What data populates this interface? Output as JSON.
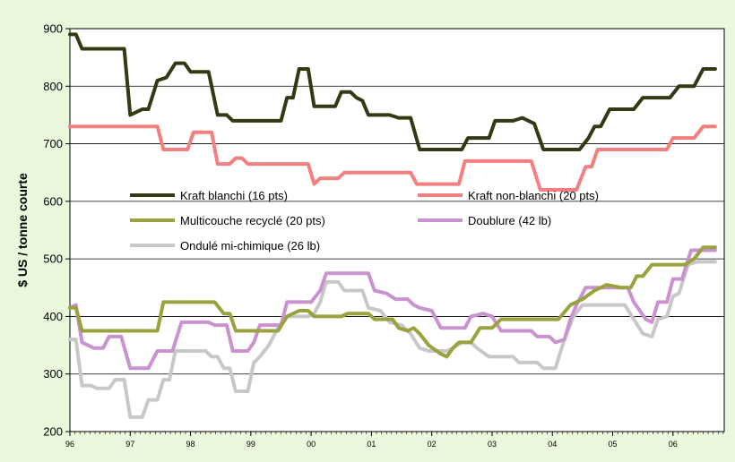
{
  "chart_data": {
    "type": "line",
    "title": "",
    "xlabel": "",
    "ylabel": "$ US / tonne courte",
    "ylim": [
      200,
      900
    ],
    "yticks": [
      200,
      300,
      400,
      500,
      600,
      700,
      800,
      900
    ],
    "xlim": [
      1996.0,
      2006.85
    ],
    "xtick_labels": [
      "96",
      "97",
      "98",
      "99",
      "00",
      "01",
      "02",
      "03",
      "04",
      "05",
      "06"
    ],
    "grid": "horizontal",
    "legend_position": "center",
    "colors": {
      "background": "#eaf8dc",
      "plot_background": "#ffffff",
      "kraft_blanchi": "#333a13",
      "kraft_non_blanchi": "#f47f7f",
      "multicouche": "#9aa23e",
      "doublure": "#c893cf",
      "ondule": "#c8c8c8"
    },
    "series": [
      {
        "name": "Kraft blanchi (16 pts)",
        "color_key": "kraft_blanchi",
        "points": [
          [
            1996.0,
            890
          ],
          [
            1996.1,
            890
          ],
          [
            1996.2,
            865
          ],
          [
            1996.9,
            865
          ],
          [
            1997.0,
            750
          ],
          [
            1997.2,
            760
          ],
          [
            1997.3,
            760
          ],
          [
            1997.45,
            810
          ],
          [
            1997.6,
            815
          ],
          [
            1997.75,
            840
          ],
          [
            1997.9,
            840
          ],
          [
            1998.0,
            825
          ],
          [
            1998.3,
            825
          ],
          [
            1998.45,
            750
          ],
          [
            1998.6,
            750
          ],
          [
            1998.7,
            740
          ],
          [
            1999.5,
            740
          ],
          [
            1999.6,
            780
          ],
          [
            1999.7,
            780
          ],
          [
            1999.8,
            830
          ],
          [
            1999.95,
            830
          ],
          [
            2000.05,
            765
          ],
          [
            2000.4,
            765
          ],
          [
            2000.5,
            790
          ],
          [
            2000.65,
            790
          ],
          [
            2000.75,
            780
          ],
          [
            2000.85,
            775
          ],
          [
            2000.95,
            750
          ],
          [
            2001.3,
            750
          ],
          [
            2001.45,
            745
          ],
          [
            2001.65,
            745
          ],
          [
            2001.8,
            690
          ],
          [
            2002.5,
            690
          ],
          [
            2002.6,
            710
          ],
          [
            2002.95,
            710
          ],
          [
            2003.05,
            740
          ],
          [
            2003.35,
            740
          ],
          [
            2003.5,
            745
          ],
          [
            2003.7,
            735
          ],
          [
            2003.85,
            690
          ],
          [
            2004.45,
            690
          ],
          [
            2004.6,
            710
          ],
          [
            2004.7,
            730
          ],
          [
            2004.8,
            730
          ],
          [
            2004.95,
            760
          ],
          [
            2005.35,
            760
          ],
          [
            2005.5,
            780
          ],
          [
            2005.95,
            780
          ],
          [
            2006.1,
            800
          ],
          [
            2006.35,
            800
          ],
          [
            2006.5,
            830
          ],
          [
            2006.7,
            830
          ]
        ]
      },
      {
        "name": "Kraft non-blanchi (20 pts)",
        "color_key": "kraft_non_blanchi",
        "points": [
          [
            1996.0,
            730
          ],
          [
            1997.45,
            730
          ],
          [
            1997.55,
            690
          ],
          [
            1997.95,
            690
          ],
          [
            1998.05,
            720
          ],
          [
            1998.35,
            720
          ],
          [
            1998.45,
            665
          ],
          [
            1998.65,
            665
          ],
          [
            1998.75,
            675
          ],
          [
            1998.85,
            675
          ],
          [
            1998.95,
            665
          ],
          [
            1999.95,
            665
          ],
          [
            2000.05,
            630
          ],
          [
            2000.15,
            640
          ],
          [
            2000.45,
            640
          ],
          [
            2000.55,
            650
          ],
          [
            2001.65,
            650
          ],
          [
            2001.75,
            630
          ],
          [
            2002.45,
            630
          ],
          [
            2002.55,
            670
          ],
          [
            2003.65,
            670
          ],
          [
            2003.8,
            620
          ],
          [
            2004.4,
            620
          ],
          [
            2004.55,
            660
          ],
          [
            2004.65,
            660
          ],
          [
            2004.75,
            690
          ],
          [
            2005.9,
            690
          ],
          [
            2006.0,
            710
          ],
          [
            2006.35,
            710
          ],
          [
            2006.5,
            730
          ],
          [
            2006.7,
            730
          ]
        ]
      },
      {
        "name": "Multicouche recyclé (20 pts)",
        "color_key": "multicouche",
        "points": [
          [
            1996.0,
            415
          ],
          [
            1996.1,
            415
          ],
          [
            1996.2,
            375
          ],
          [
            1997.45,
            375
          ],
          [
            1997.55,
            425
          ],
          [
            1998.4,
            425
          ],
          [
            1998.55,
            405
          ],
          [
            1998.65,
            405
          ],
          [
            1998.75,
            375
          ],
          [
            1999.45,
            375
          ],
          [
            1999.6,
            400
          ],
          [
            1999.8,
            410
          ],
          [
            1999.95,
            410
          ],
          [
            2000.05,
            400
          ],
          [
            2000.5,
            400
          ],
          [
            2000.6,
            405
          ],
          [
            2000.95,
            405
          ],
          [
            2001.05,
            395
          ],
          [
            2001.35,
            395
          ],
          [
            2001.45,
            380
          ],
          [
            2001.6,
            375
          ],
          [
            2001.7,
            380
          ],
          [
            2001.8,
            370
          ],
          [
            2001.95,
            350
          ],
          [
            2002.15,
            335
          ],
          [
            2002.25,
            330
          ],
          [
            2002.35,
            345
          ],
          [
            2002.45,
            355
          ],
          [
            2002.65,
            355
          ],
          [
            2002.8,
            380
          ],
          [
            2003.0,
            380
          ],
          [
            2003.15,
            395
          ],
          [
            2004.1,
            395
          ],
          [
            2004.3,
            420
          ],
          [
            2004.5,
            430
          ],
          [
            2004.7,
            445
          ],
          [
            2004.9,
            455
          ],
          [
            2005.15,
            450
          ],
          [
            2005.3,
            450
          ],
          [
            2005.4,
            470
          ],
          [
            2005.5,
            470
          ],
          [
            2005.65,
            490
          ],
          [
            2006.2,
            490
          ],
          [
            2006.35,
            500
          ],
          [
            2006.5,
            520
          ],
          [
            2006.7,
            520
          ]
        ]
      },
      {
        "name": "Doublure (42 lb)",
        "color_key": "doublure",
        "points": [
          [
            1996.0,
            415
          ],
          [
            1996.1,
            420
          ],
          [
            1996.2,
            355
          ],
          [
            1996.3,
            350
          ],
          [
            1996.4,
            345
          ],
          [
            1996.55,
            345
          ],
          [
            1996.65,
            365
          ],
          [
            1996.85,
            365
          ],
          [
            1997.0,
            310
          ],
          [
            1997.3,
            310
          ],
          [
            1997.45,
            340
          ],
          [
            1997.7,
            340
          ],
          [
            1997.85,
            390
          ],
          [
            1998.3,
            390
          ],
          [
            1998.4,
            385
          ],
          [
            1998.6,
            385
          ],
          [
            1998.7,
            340
          ],
          [
            1998.95,
            340
          ],
          [
            1999.05,
            355
          ],
          [
            1999.15,
            385
          ],
          [
            1999.5,
            385
          ],
          [
            1999.6,
            425
          ],
          [
            2000.0,
            425
          ],
          [
            2000.15,
            445
          ],
          [
            2000.25,
            475
          ],
          [
            2000.95,
            475
          ],
          [
            2001.05,
            445
          ],
          [
            2001.25,
            440
          ],
          [
            2001.4,
            430
          ],
          [
            2001.6,
            430
          ],
          [
            2001.7,
            420
          ],
          [
            2001.8,
            415
          ],
          [
            2002.0,
            410
          ],
          [
            2002.15,
            380
          ],
          [
            2002.55,
            380
          ],
          [
            2002.65,
            400
          ],
          [
            2002.85,
            405
          ],
          [
            2003.0,
            400
          ],
          [
            2003.15,
            375
          ],
          [
            2003.65,
            375
          ],
          [
            2003.75,
            365
          ],
          [
            2003.95,
            365
          ],
          [
            2004.05,
            355
          ],
          [
            2004.2,
            360
          ],
          [
            2004.3,
            395
          ],
          [
            2004.4,
            420
          ],
          [
            2004.55,
            450
          ],
          [
            2005.25,
            450
          ],
          [
            2005.35,
            425
          ],
          [
            2005.55,
            395
          ],
          [
            2005.65,
            390
          ],
          [
            2005.75,
            425
          ],
          [
            2005.9,
            425
          ],
          [
            2006.0,
            465
          ],
          [
            2006.15,
            465
          ],
          [
            2006.3,
            515
          ],
          [
            2006.7,
            515
          ]
        ]
      },
      {
        "name": "Ondulé mi-chimique (26 lb)",
        "color_key": "ondule",
        "points": [
          [
            1996.0,
            360
          ],
          [
            1996.1,
            360
          ],
          [
            1996.2,
            280
          ],
          [
            1996.35,
            280
          ],
          [
            1996.45,
            275
          ],
          [
            1996.65,
            275
          ],
          [
            1996.75,
            290
          ],
          [
            1996.9,
            290
          ],
          [
            1997.0,
            225
          ],
          [
            1997.2,
            225
          ],
          [
            1997.3,
            255
          ],
          [
            1997.45,
            255
          ],
          [
            1997.55,
            290
          ],
          [
            1997.65,
            290
          ],
          [
            1997.75,
            340
          ],
          [
            1998.25,
            340
          ],
          [
            1998.35,
            330
          ],
          [
            1998.45,
            330
          ],
          [
            1998.55,
            310
          ],
          [
            1998.65,
            310
          ],
          [
            1998.75,
            270
          ],
          [
            1998.95,
            270
          ],
          [
            1999.05,
            320
          ],
          [
            1999.15,
            330
          ],
          [
            1999.3,
            350
          ],
          [
            1999.45,
            380
          ],
          [
            1999.6,
            400
          ],
          [
            1999.95,
            400
          ],
          [
            2000.05,
            405
          ],
          [
            2000.15,
            425
          ],
          [
            2000.25,
            460
          ],
          [
            2000.45,
            460
          ],
          [
            2000.55,
            445
          ],
          [
            2000.85,
            445
          ],
          [
            2000.95,
            415
          ],
          [
            2001.15,
            410
          ],
          [
            2001.3,
            390
          ],
          [
            2001.5,
            385
          ],
          [
            2001.65,
            370
          ],
          [
            2001.8,
            345
          ],
          [
            2001.95,
            340
          ],
          [
            2002.25,
            340
          ],
          [
            2002.35,
            345
          ],
          [
            2002.5,
            355
          ],
          [
            2002.65,
            355
          ],
          [
            2002.75,
            345
          ],
          [
            2002.95,
            330
          ],
          [
            2003.35,
            330
          ],
          [
            2003.45,
            320
          ],
          [
            2003.75,
            320
          ],
          [
            2003.85,
            310
          ],
          [
            2004.05,
            310
          ],
          [
            2004.2,
            360
          ],
          [
            2004.35,
            400
          ],
          [
            2004.5,
            420
          ],
          [
            2005.2,
            420
          ],
          [
            2005.35,
            395
          ],
          [
            2005.5,
            370
          ],
          [
            2005.65,
            365
          ],
          [
            2005.75,
            395
          ],
          [
            2005.9,
            400
          ],
          [
            2006.0,
            435
          ],
          [
            2006.1,
            440
          ],
          [
            2006.25,
            490
          ],
          [
            2006.4,
            495
          ],
          [
            2006.7,
            495
          ]
        ]
      }
    ]
  }
}
